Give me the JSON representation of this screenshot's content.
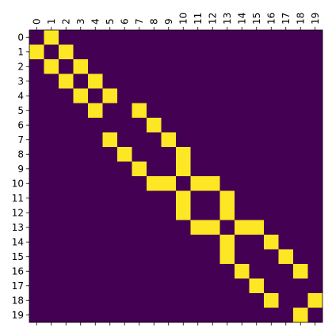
{
  "chart_data": {
    "type": "heatmap",
    "title": "",
    "xlabel": "",
    "ylabel": "",
    "x_ticks": [
      "0",
      "1",
      "2",
      "3",
      "4",
      "5",
      "6",
      "7",
      "8",
      "9",
      "10",
      "11",
      "12",
      "13",
      "14",
      "15",
      "16",
      "17",
      "18",
      "19"
    ],
    "y_ticks": [
      "0",
      "1",
      "2",
      "3",
      "4",
      "5",
      "6",
      "7",
      "8",
      "9",
      "10",
      "11",
      "12",
      "13",
      "14",
      "15",
      "16",
      "17",
      "18",
      "19"
    ],
    "x_tick_position": "top",
    "x_tick_rotation": 90,
    "grid": false,
    "legend": "none",
    "colormap": "viridis",
    "colors": {
      "zero": "#440154",
      "one": "#fde725",
      "axis": "#000000",
      "background": "#ffffff"
    },
    "matrix": [
      [
        0,
        1,
        0,
        0,
        0,
        0,
        0,
        0,
        0,
        0,
        0,
        0,
        0,
        0,
        0,
        0,
        0,
        0,
        0,
        0
      ],
      [
        1,
        0,
        1,
        0,
        0,
        0,
        0,
        0,
        0,
        0,
        0,
        0,
        0,
        0,
        0,
        0,
        0,
        0,
        0,
        0
      ],
      [
        0,
        1,
        0,
        1,
        0,
        0,
        0,
        0,
        0,
        0,
        0,
        0,
        0,
        0,
        0,
        0,
        0,
        0,
        0,
        0
      ],
      [
        0,
        0,
        1,
        0,
        1,
        0,
        0,
        0,
        0,
        0,
        0,
        0,
        0,
        0,
        0,
        0,
        0,
        0,
        0,
        0
      ],
      [
        0,
        0,
        0,
        1,
        0,
        1,
        0,
        0,
        0,
        0,
        0,
        0,
        0,
        0,
        0,
        0,
        0,
        0,
        0,
        0
      ],
      [
        0,
        0,
        0,
        0,
        1,
        0,
        0,
        1,
        0,
        0,
        0,
        0,
        0,
        0,
        0,
        0,
        0,
        0,
        0,
        0
      ],
      [
        0,
        0,
        0,
        0,
        0,
        0,
        0,
        0,
        1,
        0,
        0,
        0,
        0,
        0,
        0,
        0,
        0,
        0,
        0,
        0
      ],
      [
        0,
        0,
        0,
        0,
        0,
        1,
        0,
        0,
        0,
        1,
        0,
        0,
        0,
        0,
        0,
        0,
        0,
        0,
        0,
        0
      ],
      [
        0,
        0,
        0,
        0,
        0,
        0,
        1,
        0,
        0,
        0,
        1,
        0,
        0,
        0,
        0,
        0,
        0,
        0,
        0,
        0
      ],
      [
        0,
        0,
        0,
        0,
        0,
        0,
        0,
        1,
        0,
        0,
        1,
        0,
        0,
        0,
        0,
        0,
        0,
        0,
        0,
        0
      ],
      [
        0,
        0,
        0,
        0,
        0,
        0,
        0,
        0,
        1,
        1,
        0,
        1,
        1,
        0,
        0,
        0,
        0,
        0,
        0,
        0
      ],
      [
        0,
        0,
        0,
        0,
        0,
        0,
        0,
        0,
        0,
        0,
        1,
        0,
        0,
        1,
        0,
        0,
        0,
        0,
        0,
        0
      ],
      [
        0,
        0,
        0,
        0,
        0,
        0,
        0,
        0,
        0,
        0,
        1,
        0,
        0,
        1,
        0,
        0,
        0,
        0,
        0,
        0
      ],
      [
        0,
        0,
        0,
        0,
        0,
        0,
        0,
        0,
        0,
        0,
        0,
        1,
        1,
        0,
        1,
        1,
        0,
        0,
        0,
        0
      ],
      [
        0,
        0,
        0,
        0,
        0,
        0,
        0,
        0,
        0,
        0,
        0,
        0,
        0,
        1,
        0,
        0,
        1,
        0,
        0,
        0
      ],
      [
        0,
        0,
        0,
        0,
        0,
        0,
        0,
        0,
        0,
        0,
        0,
        0,
        0,
        1,
        0,
        0,
        0,
        1,
        0,
        0
      ],
      [
        0,
        0,
        0,
        0,
        0,
        0,
        0,
        0,
        0,
        0,
        0,
        0,
        0,
        0,
        1,
        0,
        0,
        0,
        1,
        0
      ],
      [
        0,
        0,
        0,
        0,
        0,
        0,
        0,
        0,
        0,
        0,
        0,
        0,
        0,
        0,
        0,
        1,
        0,
        0,
        0,
        0
      ],
      [
        0,
        0,
        0,
        0,
        0,
        0,
        0,
        0,
        0,
        0,
        0,
        0,
        0,
        0,
        0,
        0,
        1,
        0,
        0,
        1
      ],
      [
        0,
        0,
        0,
        0,
        0,
        0,
        0,
        0,
        0,
        0,
        0,
        0,
        0,
        0,
        0,
        0,
        0,
        0,
        1,
        0
      ]
    ]
  }
}
